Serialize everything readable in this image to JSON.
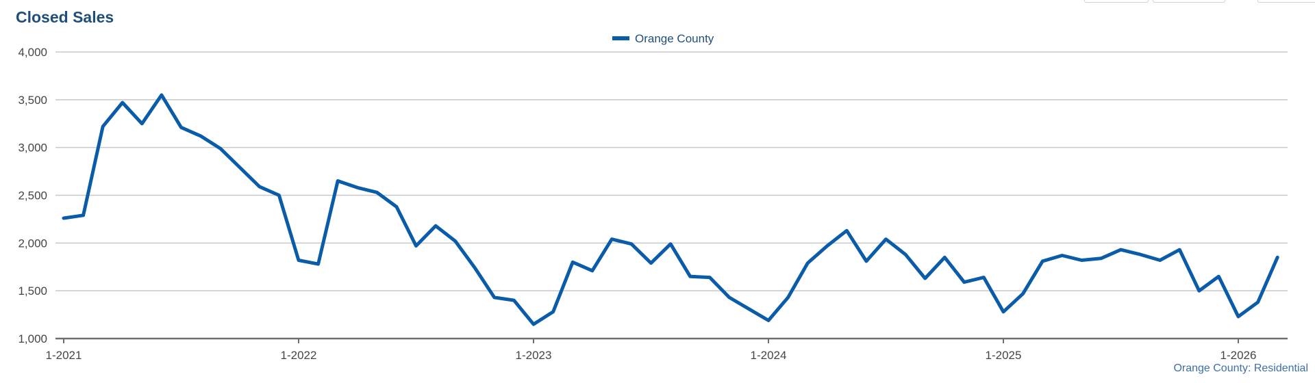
{
  "chart_data": {
    "type": "line",
    "title": "Closed Sales",
    "subtitle": "",
    "xlabel": "",
    "ylabel": "",
    "ylim": [
      1000,
      4000
    ],
    "y_ticks": [
      1000,
      1500,
      2000,
      2500,
      3000,
      3500,
      4000
    ],
    "y_tick_labels": [
      "1,000",
      "1,500",
      "2,000",
      "2,500",
      "3,000",
      "3,500",
      "4,000"
    ],
    "x_tick_labels": [
      "1-2021",
      "1-2022",
      "1-2023",
      "1-2024",
      "1-2025",
      "1-2026"
    ],
    "x_tick_dates": [
      "2021-01",
      "2022-01",
      "2023-01",
      "2024-01",
      "2025-01",
      "2026-01"
    ],
    "grid": true,
    "legend_position": "top-center",
    "color": "#0a5ca8",
    "credits": "Orange County: Residential",
    "series": [
      {
        "name": "Orange County",
        "x": [
          "2021-01",
          "2021-02",
          "2021-03",
          "2021-04",
          "2021-05",
          "2021-06",
          "2021-07",
          "2021-08",
          "2021-09",
          "2021-10",
          "2021-11",
          "2021-12",
          "2022-01",
          "2022-02",
          "2022-03",
          "2022-04",
          "2022-05",
          "2022-06",
          "2022-07",
          "2022-08",
          "2022-09",
          "2022-10",
          "2022-11",
          "2022-12",
          "2023-01",
          "2023-02",
          "2023-03",
          "2023-04",
          "2023-05",
          "2023-06",
          "2023-07",
          "2023-08",
          "2023-09",
          "2023-10",
          "2023-11",
          "2023-12",
          "2024-01",
          "2024-02",
          "2024-03",
          "2024-04",
          "2024-05",
          "2024-06",
          "2024-07",
          "2024-08",
          "2024-09",
          "2024-10",
          "2024-11",
          "2024-12",
          "2025-01",
          "2025-02",
          "2025-03",
          "2025-04",
          "2025-05",
          "2025-06",
          "2025-07",
          "2025-08",
          "2025-09",
          "2025-10",
          "2025-11",
          "2025-12",
          "2026-01",
          "2026-02",
          "2026-03"
        ],
        "values": [
          2260,
          2290,
          3220,
          3470,
          3250,
          3550,
          3210,
          3120,
          2990,
          2790,
          2590,
          2500,
          1820,
          1780,
          2650,
          2580,
          2530,
          2380,
          1970,
          2180,
          2020,
          1740,
          1430,
          1400,
          1150,
          1280,
          1800,
          1710,
          2040,
          1990,
          1790,
          1990,
          1650,
          1640,
          1430,
          1310,
          1190,
          1430,
          1790,
          1970,
          2130,
          1810,
          2040,
          1880,
          1630,
          1850,
          1590,
          1640,
          1280,
          1470,
          1810,
          1870,
          1820,
          1840,
          1930,
          1880,
          1820,
          1930,
          1500,
          1650,
          1230,
          1380,
          1850
        ]
      }
    ]
  }
}
